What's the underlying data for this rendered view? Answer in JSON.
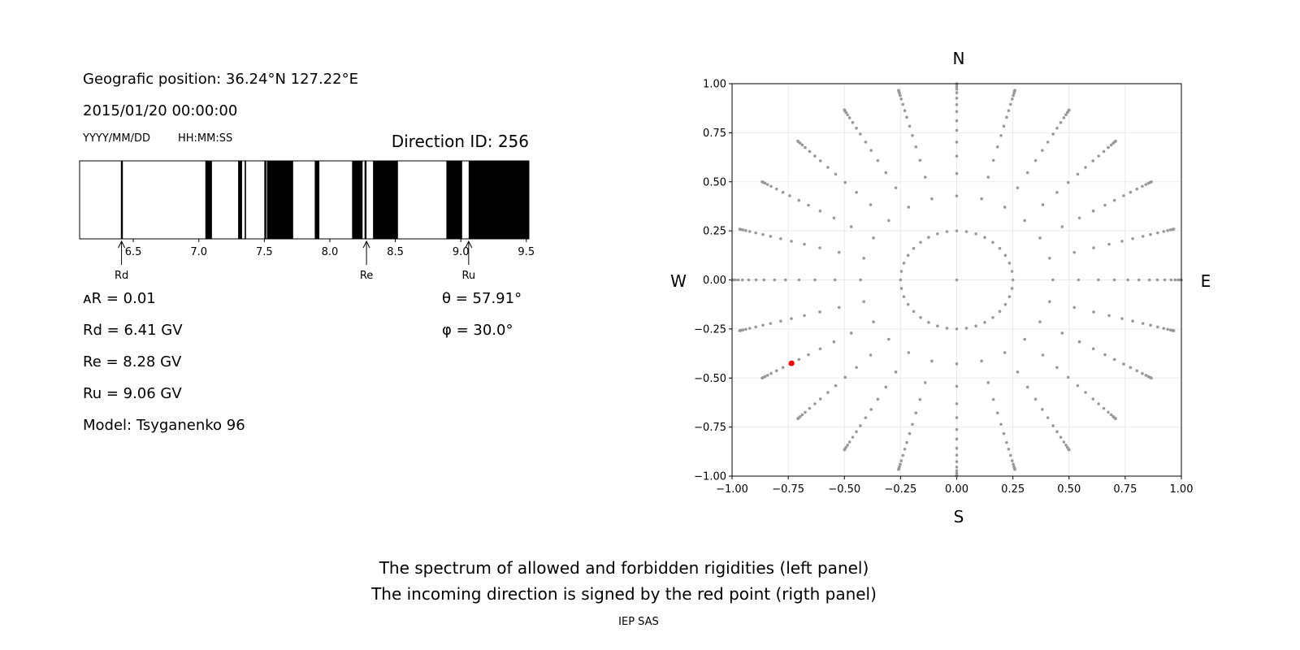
{
  "info": {
    "position": "Geografic position: 36.24°N 127.22°E",
    "datetime": "2015/01/20 00:00:00",
    "date_format": "YYYY/MM/DD",
    "time_format": "HH:MM:SS",
    "direction_id": "Direction ID: 256",
    "delta_r": "ᴀR = 0.01",
    "rd": "Rd = 6.41 GV",
    "re": "Re = 8.28 GV",
    "ru": "Ru = 9.06 GV",
    "model": "Model: Tsyganenko 96",
    "theta": "θ = 57.91°",
    "phi": "φ = 30.0°"
  },
  "caption": {
    "line1": "The spectrum of allowed and forbidden rigidities (left panel)",
    "line2": "The incoming direction is signed by the red point (rigth panel)",
    "credit": "IEP SAS"
  },
  "colors": {
    "forbidden": "#000000",
    "allowed": "#ffffff",
    "grid_point": "#999999",
    "direction_point": "#ff0000"
  },
  "chart_data": [
    {
      "type": "bar",
      "xlim": [
        6.09,
        9.52
      ],
      "ticks": [
        "6.5",
        "7.0",
        "7.5",
        "8.0",
        "8.5",
        "9.0",
        "9.5"
      ],
      "tick_values": [
        6.5,
        7.0,
        7.5,
        8.0,
        8.5,
        9.0,
        9.5
      ],
      "forbidden_bands": [
        [
          6.405,
          6.42
        ],
        [
          7.05,
          7.1
        ],
        [
          7.3,
          7.33
        ],
        [
          7.35,
          7.36
        ],
        [
          7.5,
          7.515
        ],
        [
          7.52,
          7.72
        ],
        [
          7.885,
          7.92
        ],
        [
          8.17,
          8.25
        ],
        [
          8.265,
          8.28
        ],
        [
          8.33,
          8.52
        ],
        [
          8.89,
          9.01
        ],
        [
          9.06,
          9.52
        ]
      ],
      "markers": [
        {
          "label": "Rd",
          "value": 6.41
        },
        {
          "label": "Re",
          "value": 8.28
        },
        {
          "label": "Ru",
          "value": 9.06
        }
      ]
    },
    {
      "type": "scatter",
      "xlim": [
        -1.0,
        1.0
      ],
      "ylim": [
        -1.0,
        1.0
      ],
      "grid": true,
      "xticks": [
        "−1.00",
        "−0.75",
        "−0.50",
        "−0.25",
        "0.00",
        "0.25",
        "0.50",
        "0.75",
        "1.00"
      ],
      "yticks": [
        "−1.00",
        "−0.75",
        "−0.50",
        "−0.25",
        "0.00",
        "0.25",
        "0.50",
        "0.75",
        "1.00"
      ],
      "tick_values": [
        -1.0,
        -0.75,
        -0.5,
        -0.25,
        0.0,
        0.25,
        0.5,
        0.75,
        1.0
      ],
      "compass": {
        "north": "N",
        "south": "S",
        "west": "W",
        "east": "E"
      },
      "inner_ring_r": 0.25,
      "inner_ring_step_deg": 10,
      "ray_step_deg": 15,
      "ray_radii": [
        0.428,
        0.542,
        0.631,
        0.702,
        0.762,
        0.811,
        0.858,
        0.893,
        0.926,
        0.954,
        0.972,
        0.985,
        0.994,
        0.999,
        1.0
      ],
      "center_point": [
        0,
        0
      ],
      "highlight": {
        "x": -0.735,
        "y": -0.425
      }
    }
  ]
}
